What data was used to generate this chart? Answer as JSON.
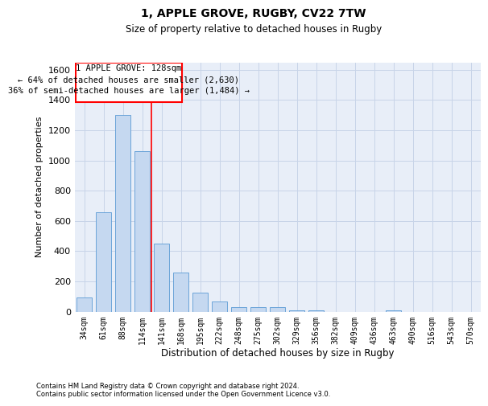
{
  "title1": "1, APPLE GROVE, RUGBY, CV22 7TW",
  "title2": "Size of property relative to detached houses in Rugby",
  "xlabel": "Distribution of detached houses by size in Rugby",
  "ylabel": "Number of detached properties",
  "categories": [
    "34sqm",
    "61sqm",
    "88sqm",
    "114sqm",
    "141sqm",
    "168sqm",
    "195sqm",
    "222sqm",
    "248sqm",
    "275sqm",
    "302sqm",
    "329sqm",
    "356sqm",
    "382sqm",
    "409sqm",
    "436sqm",
    "463sqm",
    "490sqm",
    "516sqm",
    "543sqm",
    "570sqm"
  ],
  "values": [
    95,
    660,
    1300,
    1060,
    450,
    260,
    125,
    65,
    28,
    28,
    28,
    10,
    10,
    0,
    0,
    0,
    10,
    0,
    0,
    0,
    0
  ],
  "bar_color": "#c5d8f0",
  "bar_edge_color": "#5b9bd5",
  "ylim": [
    0,
    1650
  ],
  "yticks": [
    0,
    200,
    400,
    600,
    800,
    1000,
    1200,
    1400,
    1600
  ],
  "annotation_text1": "1 APPLE GROVE: 128sqm",
  "annotation_text2": "← 64% of detached houses are smaller (2,630)",
  "annotation_text3": "36% of semi-detached houses are larger (1,484) →",
  "footer1": "Contains HM Land Registry data © Crown copyright and database right 2024.",
  "footer2": "Contains public sector information licensed under the Open Government Licence v3.0.",
  "grid_color": "#c8d4e8",
  "background_color": "#e8eef8"
}
